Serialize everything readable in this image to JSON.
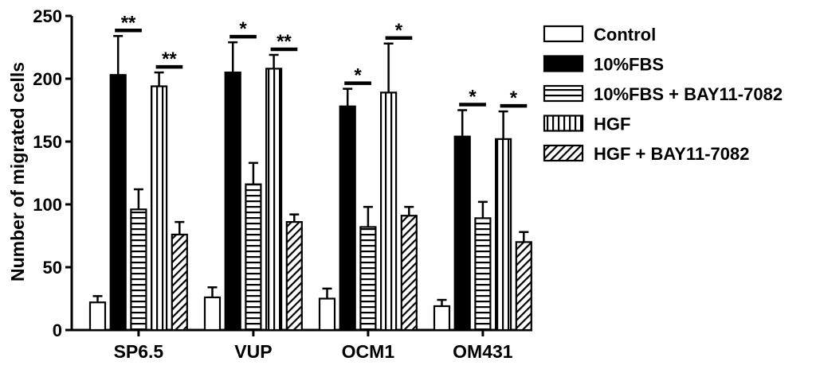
{
  "chart_data": {
    "type": "bar",
    "ylabel": "Number of migrated cells",
    "ylim": [
      0,
      250
    ],
    "yticks": [
      0,
      50,
      100,
      150,
      200,
      250
    ],
    "categories": [
      "SP6.5",
      "VUP",
      "OCM1",
      "OM431"
    ],
    "series": [
      {
        "name": "Control",
        "pattern": "empty",
        "values": [
          22,
          26,
          25,
          19
        ],
        "errors": [
          5,
          8,
          8,
          5
        ]
      },
      {
        "name": "10%FBS",
        "pattern": "solid",
        "values": [
          203,
          205,
          178,
          154
        ],
        "errors": [
          31,
          24,
          14,
          21
        ]
      },
      {
        "name": "10%FBS + BAY11-7082",
        "pattern": "hlines",
        "values": [
          96,
          116,
          82,
          89
        ],
        "errors": [
          16,
          17,
          16,
          13
        ]
      },
      {
        "name": "HGF",
        "pattern": "vlines",
        "values": [
          194,
          208,
          189,
          152
        ],
        "errors": [
          11,
          11,
          39,
          22
        ]
      },
      {
        "name": "HGF + BAY11-7082",
        "pattern": "diag",
        "values": [
          76,
          86,
          91,
          70
        ],
        "errors": [
          10,
          6,
          7,
          8
        ]
      }
    ],
    "significance": [
      {
        "category": "SP6.5",
        "from_series": 1,
        "to_series": 2,
        "label": "**"
      },
      {
        "category": "SP6.5",
        "from_series": 3,
        "to_series": 4,
        "label": "**"
      },
      {
        "category": "VUP",
        "from_series": 1,
        "to_series": 2,
        "label": "*"
      },
      {
        "category": "VUP",
        "from_series": 3,
        "to_series": 4,
        "label": "**"
      },
      {
        "category": "OCM1",
        "from_series": 1,
        "to_series": 2,
        "label": "*"
      },
      {
        "category": "OCM1",
        "from_series": 3,
        "to_series": 4,
        "label": "*"
      },
      {
        "category": "OM431",
        "from_series": 1,
        "to_series": 2,
        "label": "*"
      },
      {
        "category": "OM431",
        "from_series": 3,
        "to_series": 4,
        "label": "*"
      }
    ],
    "legend_position": "right",
    "grid": false,
    "colors": {
      "fill": "#000000",
      "background": "#ffffff"
    }
  }
}
